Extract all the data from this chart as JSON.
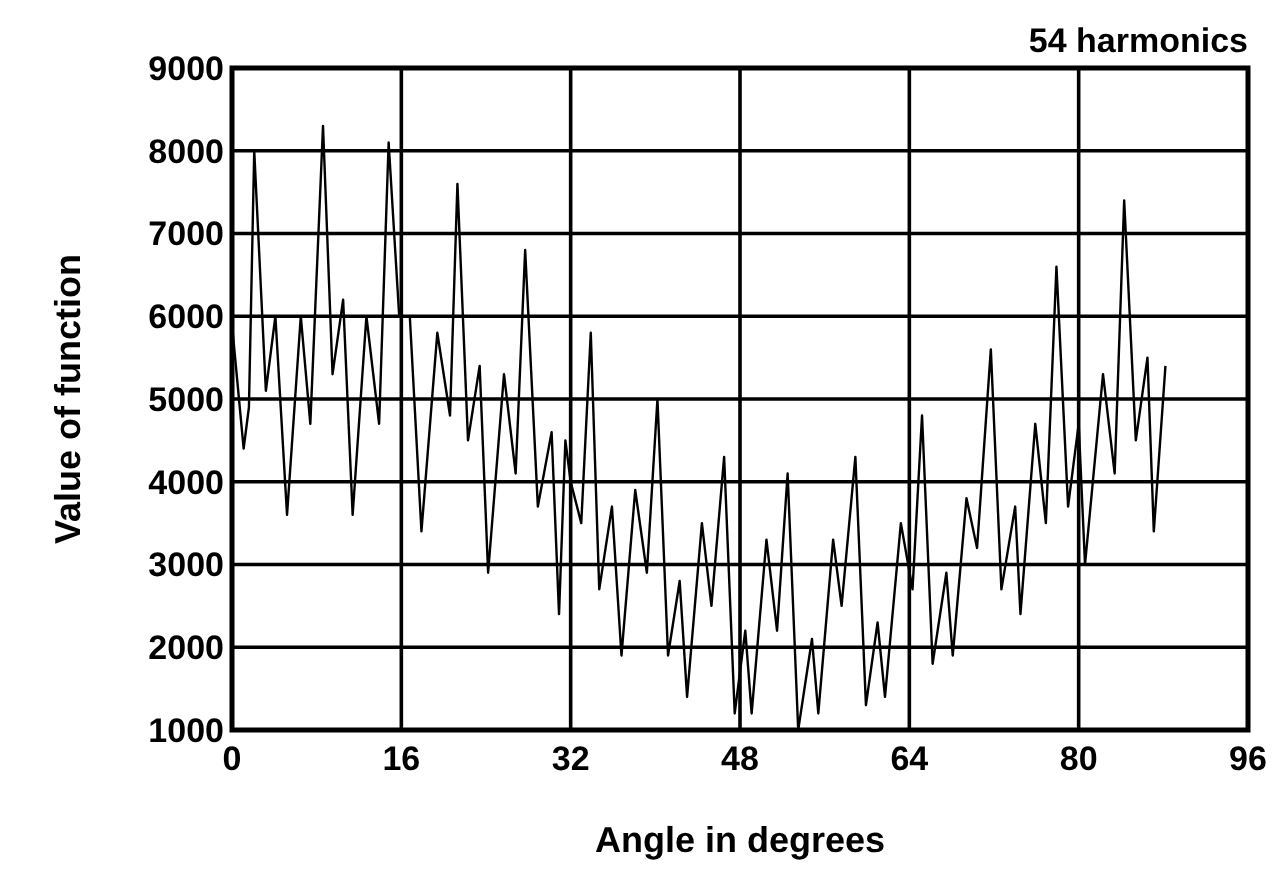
{
  "chart_data": {
    "type": "line",
    "title": "54 harmonics",
    "xlabel": "Angle in degrees",
    "ylabel": "Value of function",
    "xlim": [
      0,
      96
    ],
    "xticks": [
      0,
      16,
      32,
      48,
      64,
      80,
      96
    ],
    "ylim": [
      1000,
      9000
    ],
    "yticks": [
      1000,
      2000,
      3000,
      4000,
      5000,
      6000,
      7000,
      8000,
      9000
    ],
    "grid": true,
    "marker": "none",
    "line_style": "solid",
    "series": [
      {
        "color": "#000000",
        "x": [
          0,
          1.1,
          1.6,
          2.1,
          3.2,
          4.1,
          5.2,
          6.5,
          7.4,
          8.6,
          9.5,
          10.5,
          11.4,
          12.7,
          13.9,
          14.8,
          15.8,
          16.8,
          17.9,
          19.4,
          20.6,
          21.3,
          22.3,
          23.4,
          24.2,
          25.7,
          26.8,
          27.7,
          28.9,
          30.2,
          30.9,
          31.5,
          32,
          33,
          33.9,
          34.7,
          35.9,
          36.8,
          38.1,
          39.2,
          40.2,
          41.2,
          42.3,
          43,
          44.4,
          45.3,
          46.5,
          47.5,
          48.5,
          49.1,
          50.5,
          51.5,
          52.5,
          53.5,
          54.8,
          55.4,
          56.8,
          57.6,
          58.9,
          59.9,
          61,
          61.7,
          63.2,
          64.3,
          65.2,
          66.2,
          67.5,
          68.1,
          69.4,
          70.4,
          71.7,
          72.7,
          74,
          74.5,
          75.9,
          76.9,
          77.9,
          79,
          80,
          80.6,
          82.3,
          83.4,
          84.3,
          85.4,
          86.5,
          87.1,
          88.2
        ],
        "values": [
          5900,
          4400,
          4900,
          8000,
          5100,
          6000,
          3600,
          6000,
          4700,
          8300,
          5300,
          6200,
          3600,
          6000,
          4700,
          8100,
          6000,
          6000,
          3400,
          5800,
          4800,
          7600,
          4500,
          5400,
          2900,
          5300,
          4100,
          6800,
          3700,
          4600,
          2400,
          4500,
          4000,
          3500,
          5800,
          2700,
          3700,
          1900,
          3900,
          2900,
          5000,
          1900,
          2800,
          1400,
          3500,
          2500,
          4300,
          1200,
          2200,
          1200,
          3300,
          2200,
          4100,
          1000,
          2100,
          1200,
          3300,
          2500,
          4300,
          1300,
          2300,
          1400,
          3500,
          2700,
          4800,
          1800,
          2900,
          1900,
          3800,
          3200,
          5600,
          2700,
          3700,
          2400,
          4700,
          3500,
          6600,
          3700,
          4700,
          3000,
          5300,
          4100,
          7400,
          4500,
          5500,
          3400,
          5400
        ]
      }
    ]
  }
}
